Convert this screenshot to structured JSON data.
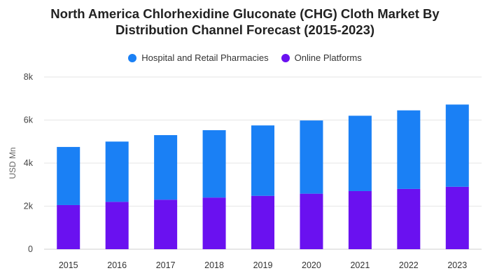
{
  "chart_data": {
    "type": "bar",
    "stacked": true,
    "title_line1": "North America Chlorhexidine Gluconate (CHG) Cloth Market By",
    "title_line2": "Distribution Channel Forecast (2015-2023)",
    "ylabel": "USD Mn",
    "xlabel": "",
    "categories": [
      "2015",
      "2016",
      "2017",
      "2018",
      "2019",
      "2020",
      "2021",
      "2022",
      "2023"
    ],
    "series": [
      {
        "name": "Online Platforms",
        "color": "#6a11f0",
        "values": [
          2050,
          2200,
          2300,
          2400,
          2480,
          2580,
          2700,
          2800,
          2900
        ]
      },
      {
        "name": "Hospital and Retail Pharmacies",
        "color": "#1a80f5",
        "values": [
          2700,
          2800,
          3000,
          3130,
          3270,
          3400,
          3500,
          3650,
          3820
        ]
      }
    ],
    "ylim": [
      0,
      8000
    ],
    "yticks": [
      {
        "value": 0,
        "label": "0"
      },
      {
        "value": 2000,
        "label": "2k"
      },
      {
        "value": 4000,
        "label": "4k"
      },
      {
        "value": 6000,
        "label": "6k"
      },
      {
        "value": 8000,
        "label": "8k"
      }
    ],
    "legend": {
      "position": "top-center",
      "items": [
        "Hospital and Retail Pharmacies",
        "Online Platforms"
      ]
    },
    "grid": true
  }
}
